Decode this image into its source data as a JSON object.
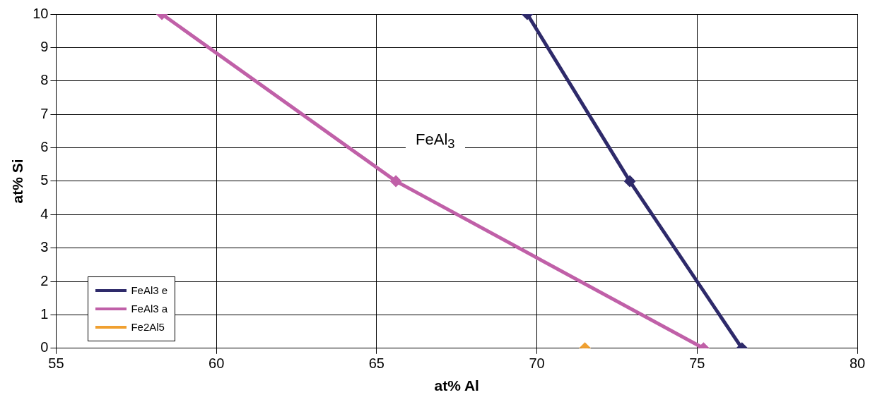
{
  "chart_data": {
    "type": "line",
    "xlabel": "at% Al",
    "ylabel": "at% Si",
    "xlim": [
      55,
      80
    ],
    "xticks": [
      55,
      60,
      65,
      70,
      75,
      80
    ],
    "ylim": [
      0,
      10
    ],
    "yticks": [
      0,
      1,
      2,
      3,
      4,
      5,
      6,
      7,
      8,
      9,
      10
    ],
    "grid": true,
    "legend": "bottom left",
    "marker": "diamond",
    "line_style": "solid",
    "series": [
      {
        "name": "FeAl3 e",
        "color": "#2e2a6a",
        "x": [
          69.7,
          72.9,
          76.4
        ],
        "values": [
          10,
          5,
          0
        ]
      },
      {
        "name": "FeAl3 a",
        "color": "#c060a8",
        "x": [
          58.3,
          65.6,
          75.2
        ],
        "values": [
          10,
          5,
          0
        ]
      },
      {
        "name": "Fe2Al5",
        "color": "#f0a030",
        "x": [
          71.5
        ],
        "values": [
          0
        ]
      }
    ],
    "annotations": [
      "FeAl$_{3}$"
    ]
  }
}
